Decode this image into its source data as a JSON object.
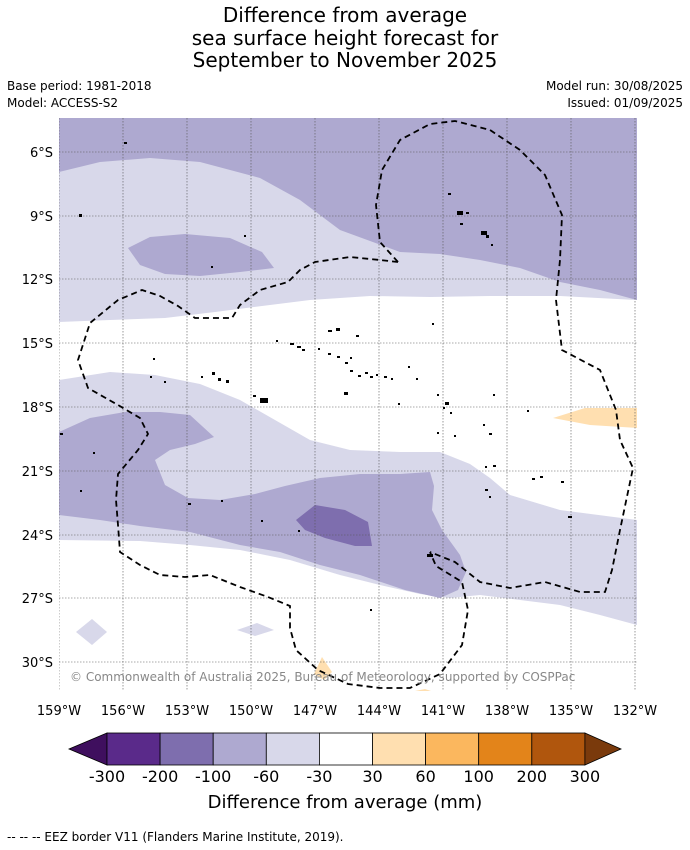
{
  "title": {
    "line1": "Difference from average",
    "line2": "sea surface height forecast for",
    "line3": "September to November 2025"
  },
  "meta": {
    "base_period": "Base period: 1981-2018",
    "model": "Model: ACCESS-S2",
    "model_run": "Model run: 30/08/2025",
    "issued": "Issued: 01/09/2025"
  },
  "map": {
    "copyright": "© Commonwealth of Australia 2025, Bureau of Meteorology, supported by COSPPac",
    "lat_labels": [
      "6°S",
      "9°S",
      "12°S",
      "15°S",
      "18°S",
      "21°S",
      "24°S",
      "27°S",
      "30°S"
    ],
    "lon_labels": [
      "159°W",
      "156°W",
      "153°W",
      "150°W",
      "147°W",
      "144°W",
      "141°W",
      "138°W",
      "135°W",
      "132°W"
    ]
  },
  "colorbar": {
    "title": "Difference from average (mm)",
    "tick_labels": [
      "-300",
      "-200",
      "-100",
      "-60",
      "-30",
      "30",
      "60",
      "100",
      "200",
      "300"
    ],
    "colors": [
      "#3f0f5e",
      "#5a2a8a",
      "#7e6eae",
      "#aea9d0",
      "#d8d8ea",
      "#ffffff",
      "#ffdfb0",
      "#fbb75e",
      "#e3841a",
      "#b0560d",
      "#7a3a0c"
    ]
  },
  "footer": "--  --  -- EEZ border V11 (Flanders Marine Institute, 2019)."
}
